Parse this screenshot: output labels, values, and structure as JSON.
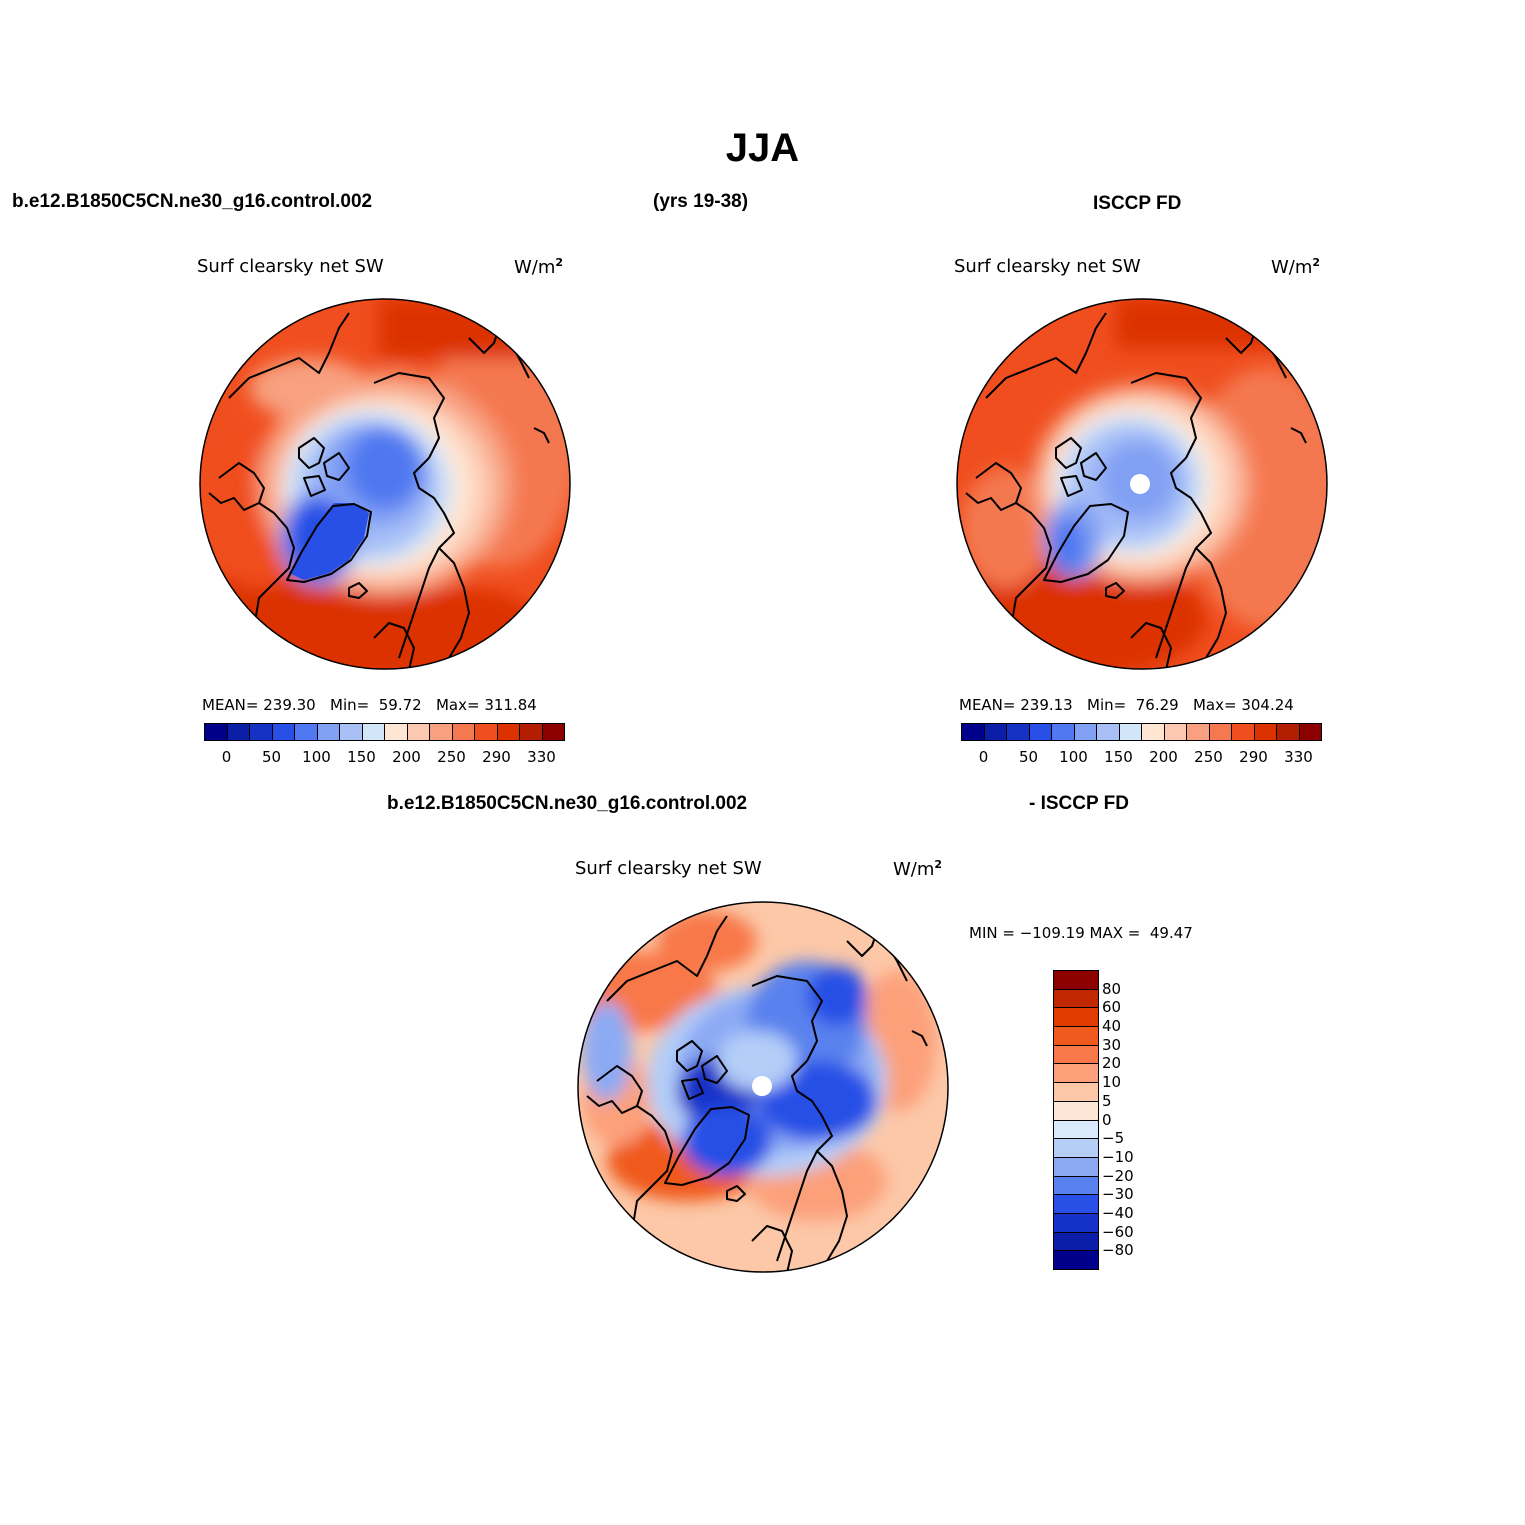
{
  "figure": {
    "title": "JJA",
    "case_name": "b.e12.B1850C5CN.ne30_g16.control.002",
    "years": "(yrs 19-38)",
    "obs_name": "ISCCP FD",
    "diff_case_name": "b.e12.B1850C5CN.ne30_g16.control.002",
    "diff_obs_name": "- ISCCP FD"
  },
  "panels": [
    {
      "id": "model",
      "variable": "Surf clearsky net SW",
      "units_base": "W/m",
      "units_exp": "2",
      "stats_text": "MEAN= 239.30   Min=  59.72   Max= 311.84"
    },
    {
      "id": "obs",
      "variable": "Surf clearsky net SW",
      "units_base": "W/m",
      "units_exp": "2",
      "stats_text": "MEAN= 239.13   Min=  76.29   Max= 304.24"
    },
    {
      "id": "diff",
      "variable": "Surf clearsky net SW",
      "units_base": "W/m",
      "units_exp": "2",
      "stats_text": "MIN = −109.19 MAX =  49.47"
    }
  ],
  "colorbar_main": {
    "colors": [
      "#00008a",
      "#0a1ea8",
      "#1632c4",
      "#2850e6",
      "#5078f0",
      "#82a0f4",
      "#a8c0f6",
      "#d2e6fa",
      "#ffe6d2",
      "#fcc8b0",
      "#f8a080",
      "#f47850",
      "#f04e1e",
      "#dc3200",
      "#b41e00",
      "#8c0000"
    ],
    "labels": [
      "0",
      "50",
      "100",
      "150",
      "200",
      "250",
      "290",
      "330"
    ]
  },
  "colorbar_diff": {
    "colors": [
      "#8c0000",
      "#c02800",
      "#e03c00",
      "#f05a1e",
      "#f8784a",
      "#fca07a",
      "#fcc8a8",
      "#fde6d6",
      "#d8eafb",
      "#b4cef8",
      "#8caaf4",
      "#5a82ee",
      "#2850e6",
      "#1432c8",
      "#0a1eaa",
      "#00008a"
    ],
    "labels": [
      "80",
      "60",
      "40",
      "30",
      "20",
      "10",
      "5",
      "0",
      "−5",
      "−10",
      "−20",
      "−30",
      "−40",
      "−60",
      "−80"
    ]
  }
}
